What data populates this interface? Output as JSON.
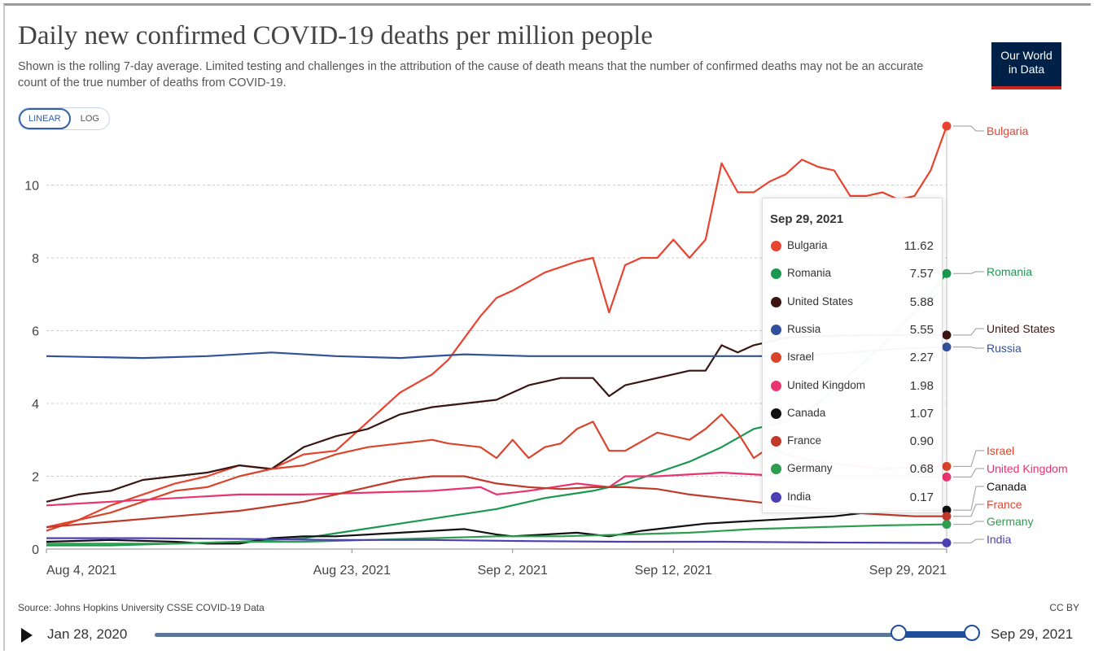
{
  "header": {
    "title": "Daily new confirmed COVID-19 deaths per million people",
    "subtitle": "Shown is the rolling 7-day average. Limited testing and challenges in the attribution of the cause of death means that the number of confirmed deaths may not be an accurate count of the true number of deaths from COVID-19.",
    "logo_line1": "Our World",
    "logo_line2": "in Data"
  },
  "controls": {
    "linear_label": "LINEAR",
    "log_label": "LOG"
  },
  "tooltip": {
    "date": "Sep 29, 2021",
    "rows": [
      {
        "name": "Bulgaria",
        "value": "11.62",
        "color": "#e8432f"
      },
      {
        "name": "Romania",
        "value": "7.57",
        "color": "#1a9850"
      },
      {
        "name": "United States",
        "value": "5.88",
        "color": "#3a1612"
      },
      {
        "name": "Russia",
        "value": "5.55",
        "color": "#33509a"
      },
      {
        "name": "Israel",
        "value": "2.27",
        "color": "#d9452b"
      },
      {
        "name": "United Kingdom",
        "value": "1.98",
        "color": "#e8346f"
      },
      {
        "name": "Canada",
        "value": "1.07",
        "color": "#111111"
      },
      {
        "name": "France",
        "value": "0.90",
        "color": "#c0392b"
      },
      {
        "name": "Germany",
        "value": "0.68",
        "color": "#2e9d4f"
      },
      {
        "name": "India",
        "value": "0.17",
        "color": "#4b3fb3"
      }
    ]
  },
  "footer": {
    "source": "Source: Johns Hopkins University CSSE COVID-19 Data",
    "license": "CC BY"
  },
  "timeline": {
    "start_label": "Jan 28, 2020",
    "end_label": "Sep 29, 2021",
    "range_start_fraction": 0.91,
    "range_end_fraction": 1.0
  },
  "chart_data": {
    "type": "line",
    "title": "Daily new confirmed COVID-19 deaths per million people",
    "ylim": [
      0,
      11.62
    ],
    "yticks": [
      0,
      2,
      4,
      6,
      8,
      10
    ],
    "xlim": [
      0,
      56
    ],
    "xticks": [
      {
        "x": 0,
        "label": "Aug 4, 2021"
      },
      {
        "x": 19,
        "label": "Aug 23, 2021"
      },
      {
        "x": 29,
        "label": "Sep 2, 2021"
      },
      {
        "x": 39,
        "label": "Sep 12, 2021"
      },
      {
        "x": 56,
        "label": "Sep 29, 2021"
      }
    ],
    "x_unit": "days after Aug 4, 2021",
    "grid": "horizontal dashed",
    "series": [
      {
        "name": "Bulgaria",
        "color": "#e8432f",
        "label_color": "#e8432f",
        "points": [
          [
            0,
            0.6
          ],
          [
            2,
            0.8
          ],
          [
            4,
            1.2
          ],
          [
            6,
            1.5
          ],
          [
            8,
            1.8
          ],
          [
            10,
            2.0
          ],
          [
            12,
            2.3
          ],
          [
            14,
            2.2
          ],
          [
            16,
            2.6
          ],
          [
            18,
            2.7
          ],
          [
            20,
            3.5
          ],
          [
            22,
            4.3
          ],
          [
            24,
            4.8
          ],
          [
            25,
            5.2
          ],
          [
            27,
            6.4
          ],
          [
            28,
            6.9
          ],
          [
            29,
            7.1
          ],
          [
            31,
            7.6
          ],
          [
            33,
            7.9
          ],
          [
            34,
            8.0
          ],
          [
            35,
            6.5
          ],
          [
            36,
            7.8
          ],
          [
            37,
            8.0
          ],
          [
            38,
            8.0
          ],
          [
            39,
            8.5
          ],
          [
            40,
            8.0
          ],
          [
            41,
            8.5
          ],
          [
            42,
            10.6
          ],
          [
            43,
            9.8
          ],
          [
            44,
            9.8
          ],
          [
            45,
            10.1
          ],
          [
            46,
            10.3
          ],
          [
            47,
            10.7
          ],
          [
            48,
            10.5
          ],
          [
            49,
            10.4
          ],
          [
            50,
            9.7
          ],
          [
            51,
            9.7
          ],
          [
            52,
            9.8
          ],
          [
            53,
            9.6
          ],
          [
            54,
            9.7
          ],
          [
            55,
            10.4
          ],
          [
            56,
            11.62
          ]
        ]
      },
      {
        "name": "Romania",
        "color": "#1a9850",
        "label_color": "#1a9850",
        "points": [
          [
            0,
            0.1
          ],
          [
            4,
            0.1
          ],
          [
            8,
            0.15
          ],
          [
            12,
            0.2
          ],
          [
            16,
            0.3
          ],
          [
            19,
            0.5
          ],
          [
            22,
            0.7
          ],
          [
            25,
            0.9
          ],
          [
            28,
            1.1
          ],
          [
            31,
            1.4
          ],
          [
            34,
            1.6
          ],
          [
            36,
            1.8
          ],
          [
            38,
            2.1
          ],
          [
            40,
            2.4
          ],
          [
            42,
            2.8
          ],
          [
            44,
            3.3
          ],
          [
            46,
            3.5
          ],
          [
            48,
            4.0
          ],
          [
            50,
            4.8
          ],
          [
            52,
            5.6
          ],
          [
            54,
            6.5
          ],
          [
            56,
            7.57
          ]
        ]
      },
      {
        "name": "United States",
        "color": "#3a1612",
        "label_color": "#3a1612",
        "points": [
          [
            0,
            1.3
          ],
          [
            2,
            1.5
          ],
          [
            4,
            1.6
          ],
          [
            6,
            1.9
          ],
          [
            8,
            2.0
          ],
          [
            10,
            2.1
          ],
          [
            12,
            2.3
          ],
          [
            14,
            2.2
          ],
          [
            16,
            2.8
          ],
          [
            18,
            3.1
          ],
          [
            20,
            3.3
          ],
          [
            22,
            3.7
          ],
          [
            24,
            3.9
          ],
          [
            26,
            4.0
          ],
          [
            28,
            4.1
          ],
          [
            30,
            4.5
          ],
          [
            32,
            4.7
          ],
          [
            34,
            4.7
          ],
          [
            35,
            4.2
          ],
          [
            36,
            4.5
          ],
          [
            38,
            4.7
          ],
          [
            40,
            4.9
          ],
          [
            41,
            4.9
          ],
          [
            42,
            5.6
          ],
          [
            43,
            5.4
          ],
          [
            44,
            5.6
          ],
          [
            46,
            5.8
          ],
          [
            48,
            5.85
          ],
          [
            52,
            5.88
          ],
          [
            56,
            5.88
          ]
        ]
      },
      {
        "name": "Russia",
        "color": "#33509a",
        "label_color": "#33509a",
        "points": [
          [
            0,
            5.3
          ],
          [
            6,
            5.25
          ],
          [
            10,
            5.3
          ],
          [
            14,
            5.4
          ],
          [
            18,
            5.3
          ],
          [
            22,
            5.25
          ],
          [
            26,
            5.35
          ],
          [
            30,
            5.3
          ],
          [
            34,
            5.3
          ],
          [
            38,
            5.3
          ],
          [
            42,
            5.3
          ],
          [
            46,
            5.3
          ],
          [
            50,
            5.4
          ],
          [
            53,
            5.5
          ],
          [
            56,
            5.55
          ]
        ]
      },
      {
        "name": "Israel",
        "color": "#d9452b",
        "label_color": "#d9452b",
        "points": [
          [
            0,
            0.5
          ],
          [
            2,
            0.8
          ],
          [
            4,
            1.0
          ],
          [
            6,
            1.3
          ],
          [
            8,
            1.6
          ],
          [
            10,
            1.7
          ],
          [
            12,
            2.0
          ],
          [
            14,
            2.2
          ],
          [
            16,
            2.3
          ],
          [
            18,
            2.6
          ],
          [
            20,
            2.8
          ],
          [
            22,
            2.9
          ],
          [
            24,
            3.0
          ],
          [
            25,
            2.9
          ],
          [
            27,
            2.8
          ],
          [
            28,
            2.5
          ],
          [
            29,
            3.0
          ],
          [
            30,
            2.5
          ],
          [
            31,
            2.8
          ],
          [
            32,
            2.9
          ],
          [
            33,
            3.3
          ],
          [
            34,
            3.5
          ],
          [
            35,
            2.7
          ],
          [
            36,
            2.7
          ],
          [
            38,
            3.2
          ],
          [
            40,
            3.0
          ],
          [
            41,
            3.3
          ],
          [
            42,
            3.7
          ],
          [
            43,
            3.2
          ],
          [
            44,
            2.5
          ],
          [
            45,
            2.8
          ],
          [
            46,
            2.6
          ],
          [
            48,
            2.4
          ],
          [
            50,
            2.3
          ],
          [
            52,
            2.2
          ],
          [
            54,
            2.25
          ],
          [
            56,
            2.27
          ]
        ]
      },
      {
        "name": "United Kingdom",
        "color": "#e8346f",
        "label_color": "#e8346f",
        "points": [
          [
            0,
            1.2
          ],
          [
            4,
            1.3
          ],
          [
            8,
            1.4
          ],
          [
            12,
            1.5
          ],
          [
            16,
            1.5
          ],
          [
            20,
            1.55
          ],
          [
            24,
            1.6
          ],
          [
            27,
            1.7
          ],
          [
            28,
            1.5
          ],
          [
            30,
            1.6
          ],
          [
            33,
            1.8
          ],
          [
            35,
            1.7
          ],
          [
            36,
            2.0
          ],
          [
            38,
            2.0
          ],
          [
            42,
            2.1
          ],
          [
            46,
            2.0
          ],
          [
            50,
            2.0
          ],
          [
            53,
            2.0
          ],
          [
            56,
            1.98
          ]
        ]
      },
      {
        "name": "Canada",
        "color": "#111111",
        "label_color": "#111111",
        "points": [
          [
            0,
            0.2
          ],
          [
            4,
            0.25
          ],
          [
            8,
            0.2
          ],
          [
            10,
            0.15
          ],
          [
            12,
            0.15
          ],
          [
            14,
            0.3
          ],
          [
            16,
            0.35
          ],
          [
            18,
            0.35
          ],
          [
            20,
            0.4
          ],
          [
            22,
            0.45
          ],
          [
            24,
            0.5
          ],
          [
            26,
            0.55
          ],
          [
            28,
            0.4
          ],
          [
            29,
            0.35
          ],
          [
            31,
            0.4
          ],
          [
            33,
            0.45
          ],
          [
            35,
            0.35
          ],
          [
            37,
            0.5
          ],
          [
            39,
            0.6
          ],
          [
            41,
            0.7
          ],
          [
            43,
            0.75
          ],
          [
            45,
            0.8
          ],
          [
            47,
            0.85
          ],
          [
            49,
            0.9
          ],
          [
            51,
            1.0
          ],
          [
            53,
            1.05
          ],
          [
            56,
            1.07
          ]
        ]
      },
      {
        "name": "France",
        "color": "#c0392b",
        "label_color": "#e8432f",
        "points": [
          [
            0,
            0.6
          ],
          [
            4,
            0.75
          ],
          [
            8,
            0.9
          ],
          [
            12,
            1.05
          ],
          [
            16,
            1.3
          ],
          [
            18,
            1.5
          ],
          [
            20,
            1.7
          ],
          [
            22,
            1.9
          ],
          [
            24,
            2.0
          ],
          [
            26,
            2.0
          ],
          [
            28,
            1.8
          ],
          [
            30,
            1.7
          ],
          [
            32,
            1.65
          ],
          [
            34,
            1.7
          ],
          [
            36,
            1.7
          ],
          [
            38,
            1.65
          ],
          [
            40,
            1.5
          ],
          [
            42,
            1.4
          ],
          [
            44,
            1.3
          ],
          [
            46,
            1.2
          ],
          [
            48,
            1.1
          ],
          [
            50,
            1.0
          ],
          [
            52,
            0.95
          ],
          [
            54,
            0.9
          ],
          [
            56,
            0.9
          ]
        ]
      },
      {
        "name": "Germany",
        "color": "#2e9d4f",
        "label_color": "#2e9d4f",
        "points": [
          [
            0,
            0.15
          ],
          [
            4,
            0.15
          ],
          [
            8,
            0.15
          ],
          [
            12,
            0.2
          ],
          [
            16,
            0.2
          ],
          [
            20,
            0.25
          ],
          [
            24,
            0.3
          ],
          [
            28,
            0.35
          ],
          [
            32,
            0.35
          ],
          [
            36,
            0.4
          ],
          [
            40,
            0.45
          ],
          [
            44,
            0.55
          ],
          [
            48,
            0.6
          ],
          [
            52,
            0.65
          ],
          [
            56,
            0.68
          ]
        ]
      },
      {
        "name": "India",
        "color": "#4b3fb3",
        "label_color": "#4b3fb3",
        "points": [
          [
            0,
            0.3
          ],
          [
            6,
            0.3
          ],
          [
            12,
            0.28
          ],
          [
            18,
            0.25
          ],
          [
            24,
            0.25
          ],
          [
            30,
            0.22
          ],
          [
            36,
            0.2
          ],
          [
            42,
            0.2
          ],
          [
            48,
            0.18
          ],
          [
            56,
            0.17
          ]
        ]
      }
    ]
  }
}
